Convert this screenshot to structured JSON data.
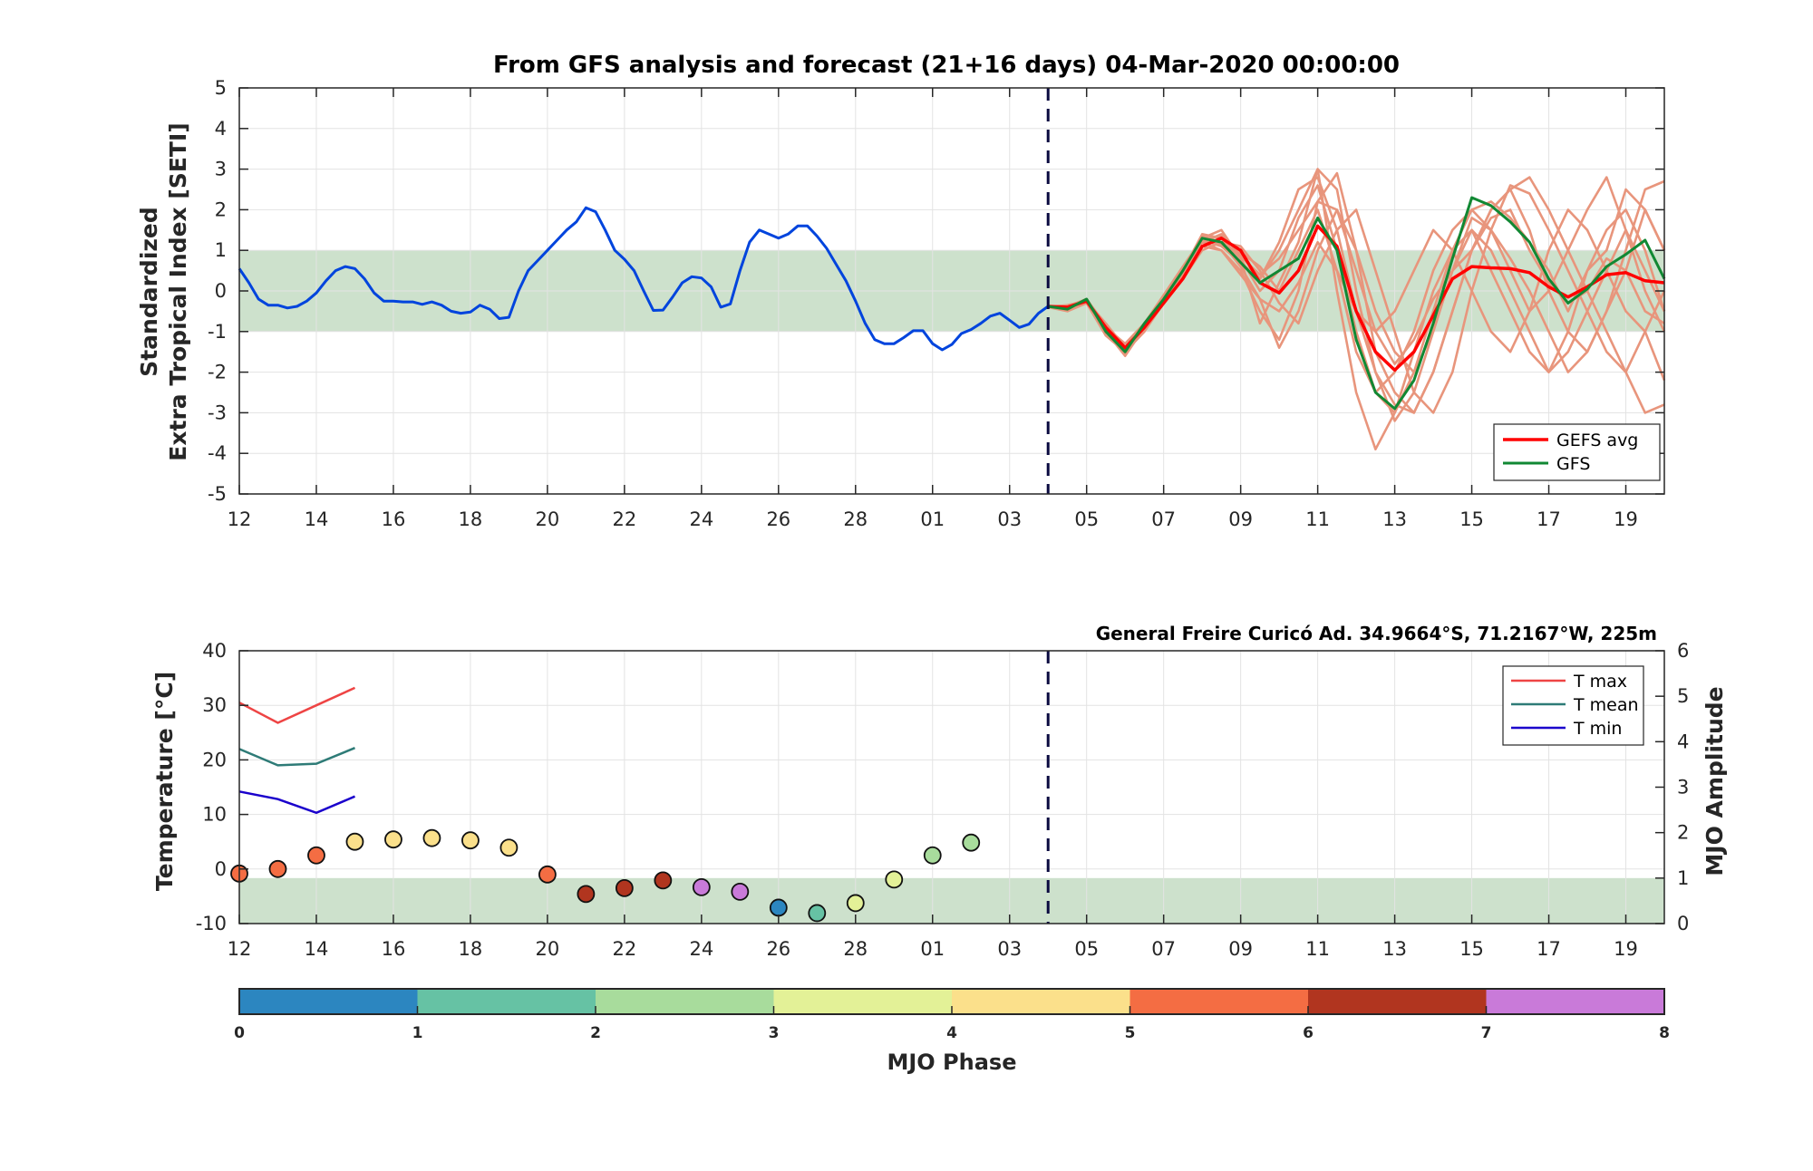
{
  "chart_data": [
    {
      "type": "line",
      "title": "From GFS analysis and forecast (21+16 days) 04-Mar-2020 00:00:00",
      "ylabel": [
        "Standardized",
        "Extra Tropical Index [SETI]"
      ],
      "ylim": [
        -5,
        5
      ],
      "yticks": [
        5,
        4,
        3,
        2,
        1,
        0,
        -1,
        -2,
        -3,
        -4,
        -5
      ],
      "xlim": [
        0,
        37
      ],
      "xtick_positions": [
        0,
        2,
        4,
        6,
        8,
        10,
        12,
        14,
        16,
        18,
        20,
        22,
        24,
        26,
        28,
        30,
        32,
        34,
        36
      ],
      "xtick_labels": [
        "12",
        "14",
        "16",
        "18",
        "20",
        "22",
        "24",
        "26",
        "28",
        "01",
        "03",
        "05",
        "07",
        "09",
        "11",
        "13",
        "15",
        "17",
        "19"
      ],
      "x_unit": "days since 12-Feb-2020",
      "forecast_start_x": 21,
      "band": [
        -1,
        1
      ],
      "grid": true,
      "legend_position": "bottom-right",
      "analysis_series": {
        "color": "#0044dd",
        "x": [
          0,
          0.25,
          0.5,
          0.75,
          1,
          1.25,
          1.5,
          1.75,
          2,
          2.25,
          2.5,
          2.75,
          3,
          3.25,
          3.5,
          3.75,
          4,
          4.25,
          4.5,
          4.75,
          5,
          5.25,
          5.5,
          5.75,
          6,
          6.25,
          6.5,
          6.75,
          7,
          7.25,
          7.5,
          7.75,
          8,
          8.25,
          8.5,
          8.75,
          9,
          9.25,
          9.5,
          9.75,
          10,
          10.25,
          10.5,
          10.75,
          11,
          11.25,
          11.5,
          11.75,
          12,
          12.25,
          12.5,
          12.75,
          13,
          13.25,
          13.5,
          13.75,
          14,
          14.25,
          14.5,
          14.75,
          15,
          15.25,
          15.5,
          15.75,
          16,
          16.25,
          16.5,
          16.75,
          17,
          17.25,
          17.5,
          17.75,
          18,
          18.25,
          18.5,
          18.75,
          19,
          19.25,
          19.5,
          19.75,
          20,
          20.25,
          20.5,
          20.75,
          21
        ],
        "y": [
          0.55,
          0.2,
          -0.2,
          -0.35,
          -0.35,
          -0.42,
          -0.38,
          -0.25,
          -0.05,
          0.25,
          0.5,
          0.6,
          0.55,
          0.3,
          -0.05,
          -0.25,
          -0.25,
          -0.27,
          -0.27,
          -0.33,
          -0.27,
          -0.35,
          -0.5,
          -0.55,
          -0.52,
          -0.35,
          -0.45,
          -0.68,
          -0.65,
          0.0,
          0.5,
          0.75,
          1.0,
          1.25,
          1.5,
          1.7,
          2.05,
          1.95,
          1.5,
          1.0,
          0.78,
          0.5,
          0.0,
          -0.48,
          -0.47,
          -0.15,
          0.2,
          0.35,
          0.32,
          0.1,
          -0.4,
          -0.32,
          0.5,
          1.2,
          1.5,
          1.4,
          1.3,
          1.4,
          1.6,
          1.6,
          1.35,
          1.05,
          0.65,
          0.25,
          -0.25,
          -0.8,
          -1.2,
          -1.3,
          -1.3,
          -1.15,
          -0.98,
          -0.98,
          -1.3,
          -1.45,
          -1.32,
          -1.05,
          -0.95,
          -0.8,
          -0.62,
          -0.55,
          -0.72,
          -0.9,
          -0.82,
          -0.55,
          -0.38
        ]
      },
      "series": [
        {
          "name": "GEFS avg",
          "color": "#ff0000",
          "x": [
            21,
            21.5,
            22,
            22.5,
            23,
            23.5,
            24,
            24.5,
            25,
            25.5,
            26,
            26.5,
            27,
            27.5,
            28,
            28.5,
            29,
            29.5,
            30,
            30.5,
            31,
            31.5,
            32,
            32.5,
            33,
            33.5,
            34,
            34.5,
            35,
            35.5,
            36,
            36.5,
            37
          ],
          "y": [
            -0.38,
            -0.4,
            -0.25,
            -0.9,
            -1.4,
            -0.9,
            -0.3,
            0.3,
            1.1,
            1.3,
            1.0,
            0.2,
            -0.05,
            0.5,
            1.6,
            1.1,
            -0.5,
            -1.5,
            -1.95,
            -1.5,
            -0.6,
            0.3,
            0.6,
            0.57,
            0.55,
            0.45,
            0.1,
            -0.15,
            0.1,
            0.4,
            0.45,
            0.25,
            0.2
          ]
        },
        {
          "name": "GFS",
          "color": "#118833",
          "x": [
            21,
            21.5,
            22,
            22.5,
            23,
            23.5,
            24,
            24.5,
            25,
            25.5,
            26,
            26.5,
            27,
            27.5,
            28,
            28.5,
            29,
            29.5,
            30,
            30.5,
            31,
            31.5,
            32,
            32.5,
            33,
            33.5,
            34,
            34.5,
            35,
            35.5,
            36,
            36.5,
            37
          ],
          "y": [
            -0.38,
            -0.45,
            -0.2,
            -1.0,
            -1.5,
            -0.8,
            -0.2,
            0.5,
            1.3,
            1.2,
            0.7,
            0.2,
            0.5,
            0.8,
            1.8,
            1.0,
            -1.2,
            -2.5,
            -2.9,
            -2.2,
            -0.8,
            0.8,
            2.3,
            2.1,
            1.7,
            1.2,
            0.3,
            -0.3,
            0.05,
            0.6,
            0.9,
            1.25,
            0.3
          ]
        }
      ],
      "ensemble": {
        "color": "#e8957c",
        "members": [
          [
            -0.4,
            -0.4,
            -0.2,
            -0.9,
            -1.5,
            -1.0,
            -0.3,
            0.5,
            1.4,
            1.3,
            0.8,
            0.0,
            0.5,
            1.8,
            2.6,
            1.0,
            -1.0,
            -2.5,
            -3.0,
            -2.0,
            -0.5,
            1.0,
            2.0,
            2.2,
            1.8,
            1.2,
            0.5,
            -0.5,
            0.5,
            1.5,
            2.0,
            1.0,
            -0.5
          ],
          [
            -0.4,
            -0.5,
            -0.3,
            -1.0,
            -1.6,
            -0.9,
            -0.2,
            0.4,
            1.2,
            1.0,
            0.5,
            -0.5,
            -1.2,
            0.0,
            2.2,
            2.9,
            1.0,
            -1.5,
            -2.5,
            -3.0,
            -2.0,
            -0.5,
            1.0,
            2.0,
            2.5,
            1.5,
            0.0,
            -1.0,
            -1.5,
            -0.5,
            1.0,
            2.5,
            2.7
          ],
          [
            -0.4,
            -0.35,
            -0.25,
            -0.8,
            -1.4,
            -0.8,
            -0.1,
            0.6,
            1.3,
            1.5,
            0.8,
            -0.8,
            0.2,
            1.2,
            3.0,
            2.5,
            0.0,
            -2.0,
            -3.2,
            -2.5,
            -1.0,
            0.5,
            1.5,
            0.5,
            -0.5,
            -1.5,
            -2.0,
            -1.0,
            0.5,
            1.0,
            2.5,
            2.0,
            1.0
          ],
          [
            -0.4,
            -0.45,
            -0.2,
            -0.9,
            -1.3,
            -0.8,
            -0.3,
            0.3,
            1.0,
            1.2,
            1.1,
            0.5,
            -0.3,
            -0.8,
            0.5,
            1.5,
            2.0,
            0.5,
            -1.0,
            -2.5,
            -3.0,
            -2.0,
            0.0,
            1.5,
            2.6,
            2.4,
            1.5,
            0.5,
            -0.5,
            -1.5,
            -2.0,
            -1.0,
            0.0
          ],
          [
            -0.4,
            -0.4,
            -0.3,
            -1.1,
            -1.5,
            -1.0,
            -0.2,
            0.5,
            1.2,
            1.4,
            0.9,
            0.3,
            1.0,
            2.0,
            3.0,
            0.0,
            -2.5,
            -3.9,
            -3.0,
            -1.5,
            0.0,
            1.0,
            1.5,
            1.0,
            0.0,
            -1.0,
            -2.0,
            -1.5,
            -0.5,
            0.5,
            1.5,
            0.5,
            -0.5
          ],
          [
            -0.4,
            -0.4,
            -0.2,
            -0.85,
            -1.45,
            -0.95,
            -0.25,
            0.45,
            1.35,
            1.2,
            0.6,
            -0.2,
            -1.4,
            -0.5,
            1.0,
            2.0,
            1.0,
            -0.5,
            -1.5,
            -2.0,
            -1.0,
            0.5,
            1.8,
            1.5,
            0.8,
            0.0,
            -1.0,
            -2.0,
            -1.5,
            -0.5,
            0.5,
            2.0,
            1.0
          ],
          [
            -0.4,
            -0.42,
            -0.22,
            -0.95,
            -1.55,
            -0.85,
            -0.15,
            0.55,
            1.25,
            1.1,
            0.7,
            0.3,
            1.2,
            2.5,
            2.8,
            1.5,
            -0.5,
            -2.0,
            -2.8,
            -3.0,
            -2.0,
            -0.5,
            1.0,
            2.0,
            2.5,
            2.8,
            2.0,
            1.0,
            0.0,
            -1.0,
            -2.0,
            -3.0,
            -2.8
          ],
          [
            -0.4,
            -0.38,
            -0.2,
            -0.9,
            -1.45,
            -0.9,
            -0.3,
            0.35,
            1.1,
            1.0,
            0.4,
            -0.2,
            -0.5,
            0.2,
            1.2,
            0.5,
            -0.5,
            -1.0,
            -0.5,
            0.5,
            1.5,
            1.0,
            0.0,
            -1.0,
            -1.5,
            -0.5,
            1.0,
            2.0,
            1.5,
            0.5,
            -0.5,
            -1.0,
            -2.2
          ],
          [
            -0.4,
            -0.42,
            -0.26,
            -0.92,
            -1.48,
            -0.88,
            -0.22,
            0.48,
            1.28,
            1.35,
            0.95,
            0.6,
            0.0,
            1.0,
            2.0,
            0.5,
            -1.5,
            -2.5,
            -2.0,
            -1.0,
            0.5,
            1.5,
            2.0,
            1.5,
            0.5,
            -0.5,
            0.0,
            1.0,
            2.0,
            2.8,
            1.5,
            0.0,
            -1.0
          ],
          [
            -0.4,
            -0.4,
            -0.24,
            -0.88,
            -1.42,
            -0.92,
            -0.28,
            0.42,
            1.22,
            1.15,
            0.85,
            0.4,
            0.8,
            1.5,
            2.2,
            2.0,
            0.5,
            -1.0,
            -1.8,
            -1.2,
            -0.2,
            0.5,
            1.0,
            1.8,
            2.0,
            1.0,
            0.2,
            -0.3,
            0.0,
            0.8,
            0.5,
            -0.5,
            -0.8
          ]
        ]
      },
      "legend": [
        "GEFS avg",
        "GFS"
      ]
    },
    {
      "type": "scatter",
      "station": "General Freire Curicó Ad. 34.9664°S, 71.2167°W, 225m",
      "ylabel_left": "Temperature [°C]",
      "ylabel_right": "MJO Amplitude",
      "ylim_left": [
        -10,
        40
      ],
      "yticks_left": [
        40,
        30,
        20,
        10,
        0,
        -10
      ],
      "ylim_right": [
        0,
        6
      ],
      "yticks_right": [
        6,
        5,
        4,
        3,
        2,
        1,
        0
      ],
      "xlim": [
        0,
        37
      ],
      "xtick_positions": [
        0,
        2,
        4,
        6,
        8,
        10,
        12,
        14,
        16,
        18,
        20,
        22,
        24,
        26,
        28,
        30,
        32,
        34,
        36
      ],
      "xtick_labels": [
        "12",
        "14",
        "16",
        "18",
        "20",
        "22",
        "24",
        "26",
        "28",
        "01",
        "03",
        "05",
        "07",
        "09",
        "11",
        "13",
        "15",
        "17",
        "19"
      ],
      "forecast_start_x": 21,
      "band_right": [
        0,
        1
      ],
      "grid": true,
      "legend_position": "top-right",
      "legend": [
        "T max",
        "T mean",
        "T min"
      ],
      "temperature_series": [
        {
          "name": "T max",
          "color": "#ee4444",
          "x": [
            0,
            1,
            2,
            3
          ],
          "y": [
            30.5,
            26.8,
            30.0,
            33.2
          ]
        },
        {
          "name": "T mean",
          "color": "#2e7b77",
          "x": [
            0,
            1,
            2,
            3
          ],
          "y": [
            22.0,
            19.0,
            19.3,
            22.2
          ]
        },
        {
          "name": "T min",
          "color": "#1a00cc",
          "x": [
            0,
            1,
            2,
            3
          ],
          "y": [
            14.2,
            12.8,
            10.3,
            13.3
          ]
        }
      ],
      "mjo_points": [
        {
          "x": 0,
          "amplitude": 1.1,
          "phase": 5
        },
        {
          "x": 1,
          "amplitude": 1.2,
          "phase": 5
        },
        {
          "x": 2,
          "amplitude": 1.5,
          "phase": 5
        },
        {
          "x": 3,
          "amplitude": 1.8,
          "phase": 4
        },
        {
          "x": 4,
          "amplitude": 1.85,
          "phase": 4
        },
        {
          "x": 5,
          "amplitude": 1.88,
          "phase": 4
        },
        {
          "x": 6,
          "amplitude": 1.83,
          "phase": 4
        },
        {
          "x": 7,
          "amplitude": 1.67,
          "phase": 4
        },
        {
          "x": 8,
          "amplitude": 1.08,
          "phase": 5
        },
        {
          "x": 9,
          "amplitude": 0.65,
          "phase": 6
        },
        {
          "x": 10,
          "amplitude": 0.78,
          "phase": 6
        },
        {
          "x": 11,
          "amplitude": 0.95,
          "phase": 6
        },
        {
          "x": 12,
          "amplitude": 0.8,
          "phase": 7
        },
        {
          "x": 13,
          "amplitude": 0.7,
          "phase": 7
        },
        {
          "x": 14,
          "amplitude": 0.35,
          "phase": 0
        },
        {
          "x": 15,
          "amplitude": 0.23,
          "phase": 1
        },
        {
          "x": 16,
          "amplitude": 0.45,
          "phase": 3
        },
        {
          "x": 17,
          "amplitude": 0.97,
          "phase": 3
        },
        {
          "x": 18,
          "amplitude": 1.5,
          "phase": 2
        },
        {
          "x": 19,
          "amplitude": 1.78,
          "phase": 2
        }
      ]
    }
  ],
  "colorbar": {
    "label": "MJO Phase",
    "ticks": [
      "0",
      "1",
      "2",
      "3",
      "4",
      "5",
      "6",
      "7",
      "8"
    ],
    "colors": [
      "#2c86c0",
      "#66c2a4",
      "#a8dc9c",
      "#e3f197",
      "#fbe08b",
      "#f46d43",
      "#b1351f",
      "#c97ad9"
    ]
  }
}
